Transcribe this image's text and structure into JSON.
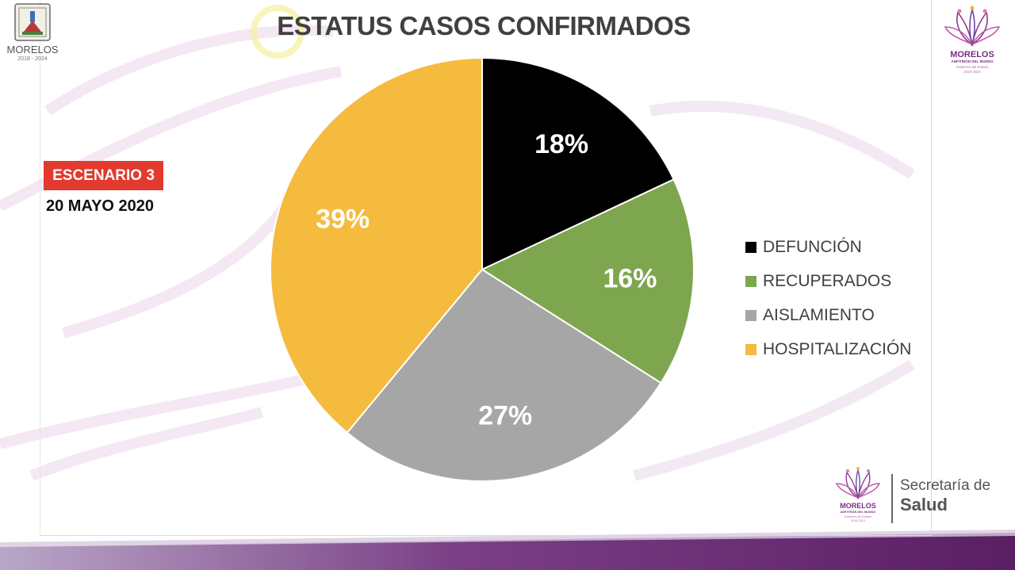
{
  "header": {
    "title": "ESTATUS CASOS CONFIRMADOS"
  },
  "scenario": {
    "badge": "ESCENARIO 3",
    "date": "20 MAYO 2020",
    "badge_color": "#e23a2e"
  },
  "crest": {
    "icon": "state-crest-icon",
    "name": "MORELOS",
    "years": "2018 - 2024"
  },
  "top_logo": {
    "icon": "morelos-lotus-logo-icon",
    "name": "MORELOS",
    "tagline": "ANFITRIÓN DEL MUNDO",
    "subtitle": "Gobierno del Estado",
    "years": "2018-2024"
  },
  "footer_logo": {
    "icon": "morelos-lotus-logo-icon",
    "name": "MORELOS",
    "tagline": "ANFITRIÓN DEL MUNDO",
    "subtitle": "Gobierno del Estado",
    "years": "2018-2024",
    "department_line1": "Secretaría de",
    "department_line2": "Salud"
  },
  "chart_data": {
    "type": "pie",
    "title": "ESTATUS CASOS CONFIRMADOS",
    "legend_position": "right",
    "categories": [
      "DEFUNCIÓN",
      "RECUPERADOS",
      "AISLAMIENTO",
      "HOSPITALIZACIÓN"
    ],
    "values": [
      18,
      16,
      27,
      39
    ],
    "labels": [
      "18%",
      "16%",
      "27%",
      "39%"
    ],
    "colors": [
      "#000000",
      "#7ea64e",
      "#a6a6a6",
      "#f4bb3f"
    ]
  }
}
